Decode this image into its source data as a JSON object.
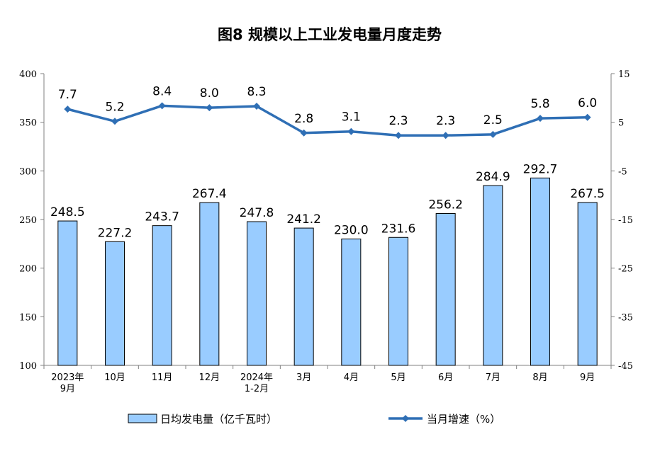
{
  "chart_data": {
    "type": "bar",
    "title": "图8  规模以上工业发电量月度走势",
    "categories": [
      [
        "2023年",
        "9月"
      ],
      [
        "10月"
      ],
      [
        "11月"
      ],
      [
        "12月"
      ],
      [
        "2024年",
        "1-2月"
      ],
      [
        "3月"
      ],
      [
        "4月"
      ],
      [
        "5月"
      ],
      [
        "6月"
      ],
      [
        "7月"
      ],
      [
        "8月"
      ],
      [
        "9月"
      ]
    ],
    "series": [
      {
        "name": "日均发电量（亿千瓦时）",
        "type": "bar",
        "axis": "left",
        "color": "#99CCFF",
        "values": [
          248.5,
          227.2,
          243.7,
          267.4,
          247.8,
          241.2,
          230.0,
          231.6,
          256.2,
          284.9,
          292.7,
          267.5
        ],
        "labels": [
          "248.5",
          "227.2",
          "243.7",
          "267.4",
          "247.8",
          "241.2",
          "230.0",
          "231.6",
          "256.2",
          "284.9",
          "292.7",
          "267.5"
        ]
      },
      {
        "name": "当月增速（%）",
        "type": "line",
        "axis": "right",
        "color": "#2F6FB5",
        "values": [
          7.7,
          5.2,
          8.4,
          8.0,
          8.3,
          2.8,
          3.1,
          2.3,
          2.3,
          2.5,
          5.8,
          6.0
        ],
        "labels": [
          "7.7",
          "5.2",
          "8.4",
          "8.0",
          "8.3",
          "2.8",
          "3.1",
          "2.3",
          "2.3",
          "2.5",
          "5.8",
          "6.0"
        ]
      }
    ],
    "y_left": {
      "min": 100,
      "max": 400,
      "ticks": [
        "100",
        "150",
        "200",
        "250",
        "300",
        "350",
        "400"
      ]
    },
    "y_right": {
      "min": -45,
      "max": 15,
      "ticks": [
        "-45",
        "-35",
        "-25",
        "-15",
        "-5",
        "5",
        "15"
      ]
    },
    "grid": false,
    "legend_position": "bottom"
  }
}
